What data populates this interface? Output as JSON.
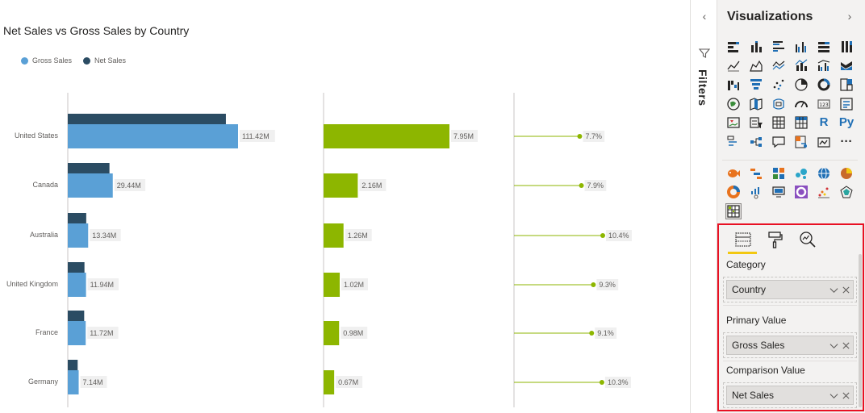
{
  "report": {
    "title": "Net Sales vs Gross Sales by Country",
    "legend": [
      {
        "name": "Gross Sales",
        "color": "#5aa0d6"
      },
      {
        "name": "Net Sales",
        "color": "#2b4c63"
      }
    ]
  },
  "chart_data": {
    "type": "bar",
    "orientation": "horizontal",
    "categories": [
      "United States",
      "Canada",
      "Australia",
      "United Kingdom",
      "France",
      "Germany"
    ],
    "series": [
      {
        "name": "Gross Sales",
        "values": [
          111.42,
          29.44,
          13.34,
          11.94,
          11.72,
          7.14
        ],
        "labels": [
          "111.42M",
          "29.44M",
          "13.34M",
          "11.94M",
          "11.72M",
          "7.14M"
        ],
        "color": "#5aa0d6"
      },
      {
        "name": "Net Sales",
        "values": [
          103.47,
          27.28,
          12.08,
          10.92,
          10.74,
          6.47
        ],
        "color": "#2b4c63"
      }
    ],
    "difference": {
      "values": [
        7.95,
        2.16,
        1.26,
        1.02,
        0.98,
        0.67
      ],
      "labels": [
        "7.95M",
        "2.16M",
        "1.26M",
        "1.02M",
        "0.98M",
        "0.67M"
      ],
      "color": "#8db600"
    },
    "difference_percent": {
      "values": [
        7.7,
        7.9,
        10.4,
        9.3,
        9.1,
        10.3
      ],
      "labels": [
        "7.7%",
        "7.9%",
        "10.4%",
        "9.3%",
        "9.1%",
        "10.3%"
      ],
      "color": "#8db600"
    }
  },
  "filters": {
    "collapse_glyph": "‹",
    "label": "Filters"
  },
  "visualizations": {
    "title": "Visualizations",
    "next_glyph": "›",
    "r_label": "R",
    "py_label": "Py",
    "more_label": "···",
    "icons": [
      "stacked-bar-chart-icon",
      "stacked-column-chart-icon",
      "clustered-bar-chart-icon",
      "clustered-column-chart-icon",
      "100-stacked-bar-chart-icon",
      "100-stacked-column-chart-icon",
      "line-chart-icon",
      "area-chart-icon",
      "stacked-area-chart-icon",
      "line-and-column-chart-icon",
      "line-and-clustered-column-chart-icon",
      "ribbon-chart-icon",
      "waterfall-chart-icon",
      "funnel-chart-icon",
      "scatter-chart-icon",
      "pie-chart-icon",
      "donut-chart-icon",
      "treemap-icon",
      "map-icon",
      "filled-map-icon",
      "shape-map-icon",
      "gauge-icon",
      "card-icon",
      "multi-row-card-icon",
      "kpi-icon",
      "slicer-icon",
      "table-icon",
      "matrix-icon",
      "r-visual-icon",
      "python-visual-icon",
      "key-influencers-icon",
      "decomposition-tree-icon",
      "qa-icon",
      "smart-narrative-icon",
      "paginated-report-icon",
      "more-visuals-icon"
    ],
    "custom_icons": [
      "custom-visual-fish-icon",
      "custom-visual-gantt-icon",
      "custom-visual-tiles-icon",
      "custom-visual-bubbles-icon",
      "custom-visual-globe-icon",
      "custom-visual-pie-icon",
      "custom-visual-donut-icon",
      "custom-visual-timeline-icon",
      "custom-visual-monitor-icon",
      "custom-visual-radial-icon",
      "custom-visual-dotplot-icon",
      "custom-visual-radar-icon",
      "custom-visual-selected-icon"
    ]
  },
  "fields": {
    "tabs": [
      "fields-tab-icon",
      "format-tab-icon",
      "analytics-tab-icon"
    ],
    "wells": [
      {
        "label": "Category",
        "field": "Country"
      },
      {
        "label": "Primary Value",
        "field": "Gross Sales"
      },
      {
        "label": "Comparison Value",
        "field": "Net Sales"
      }
    ]
  }
}
